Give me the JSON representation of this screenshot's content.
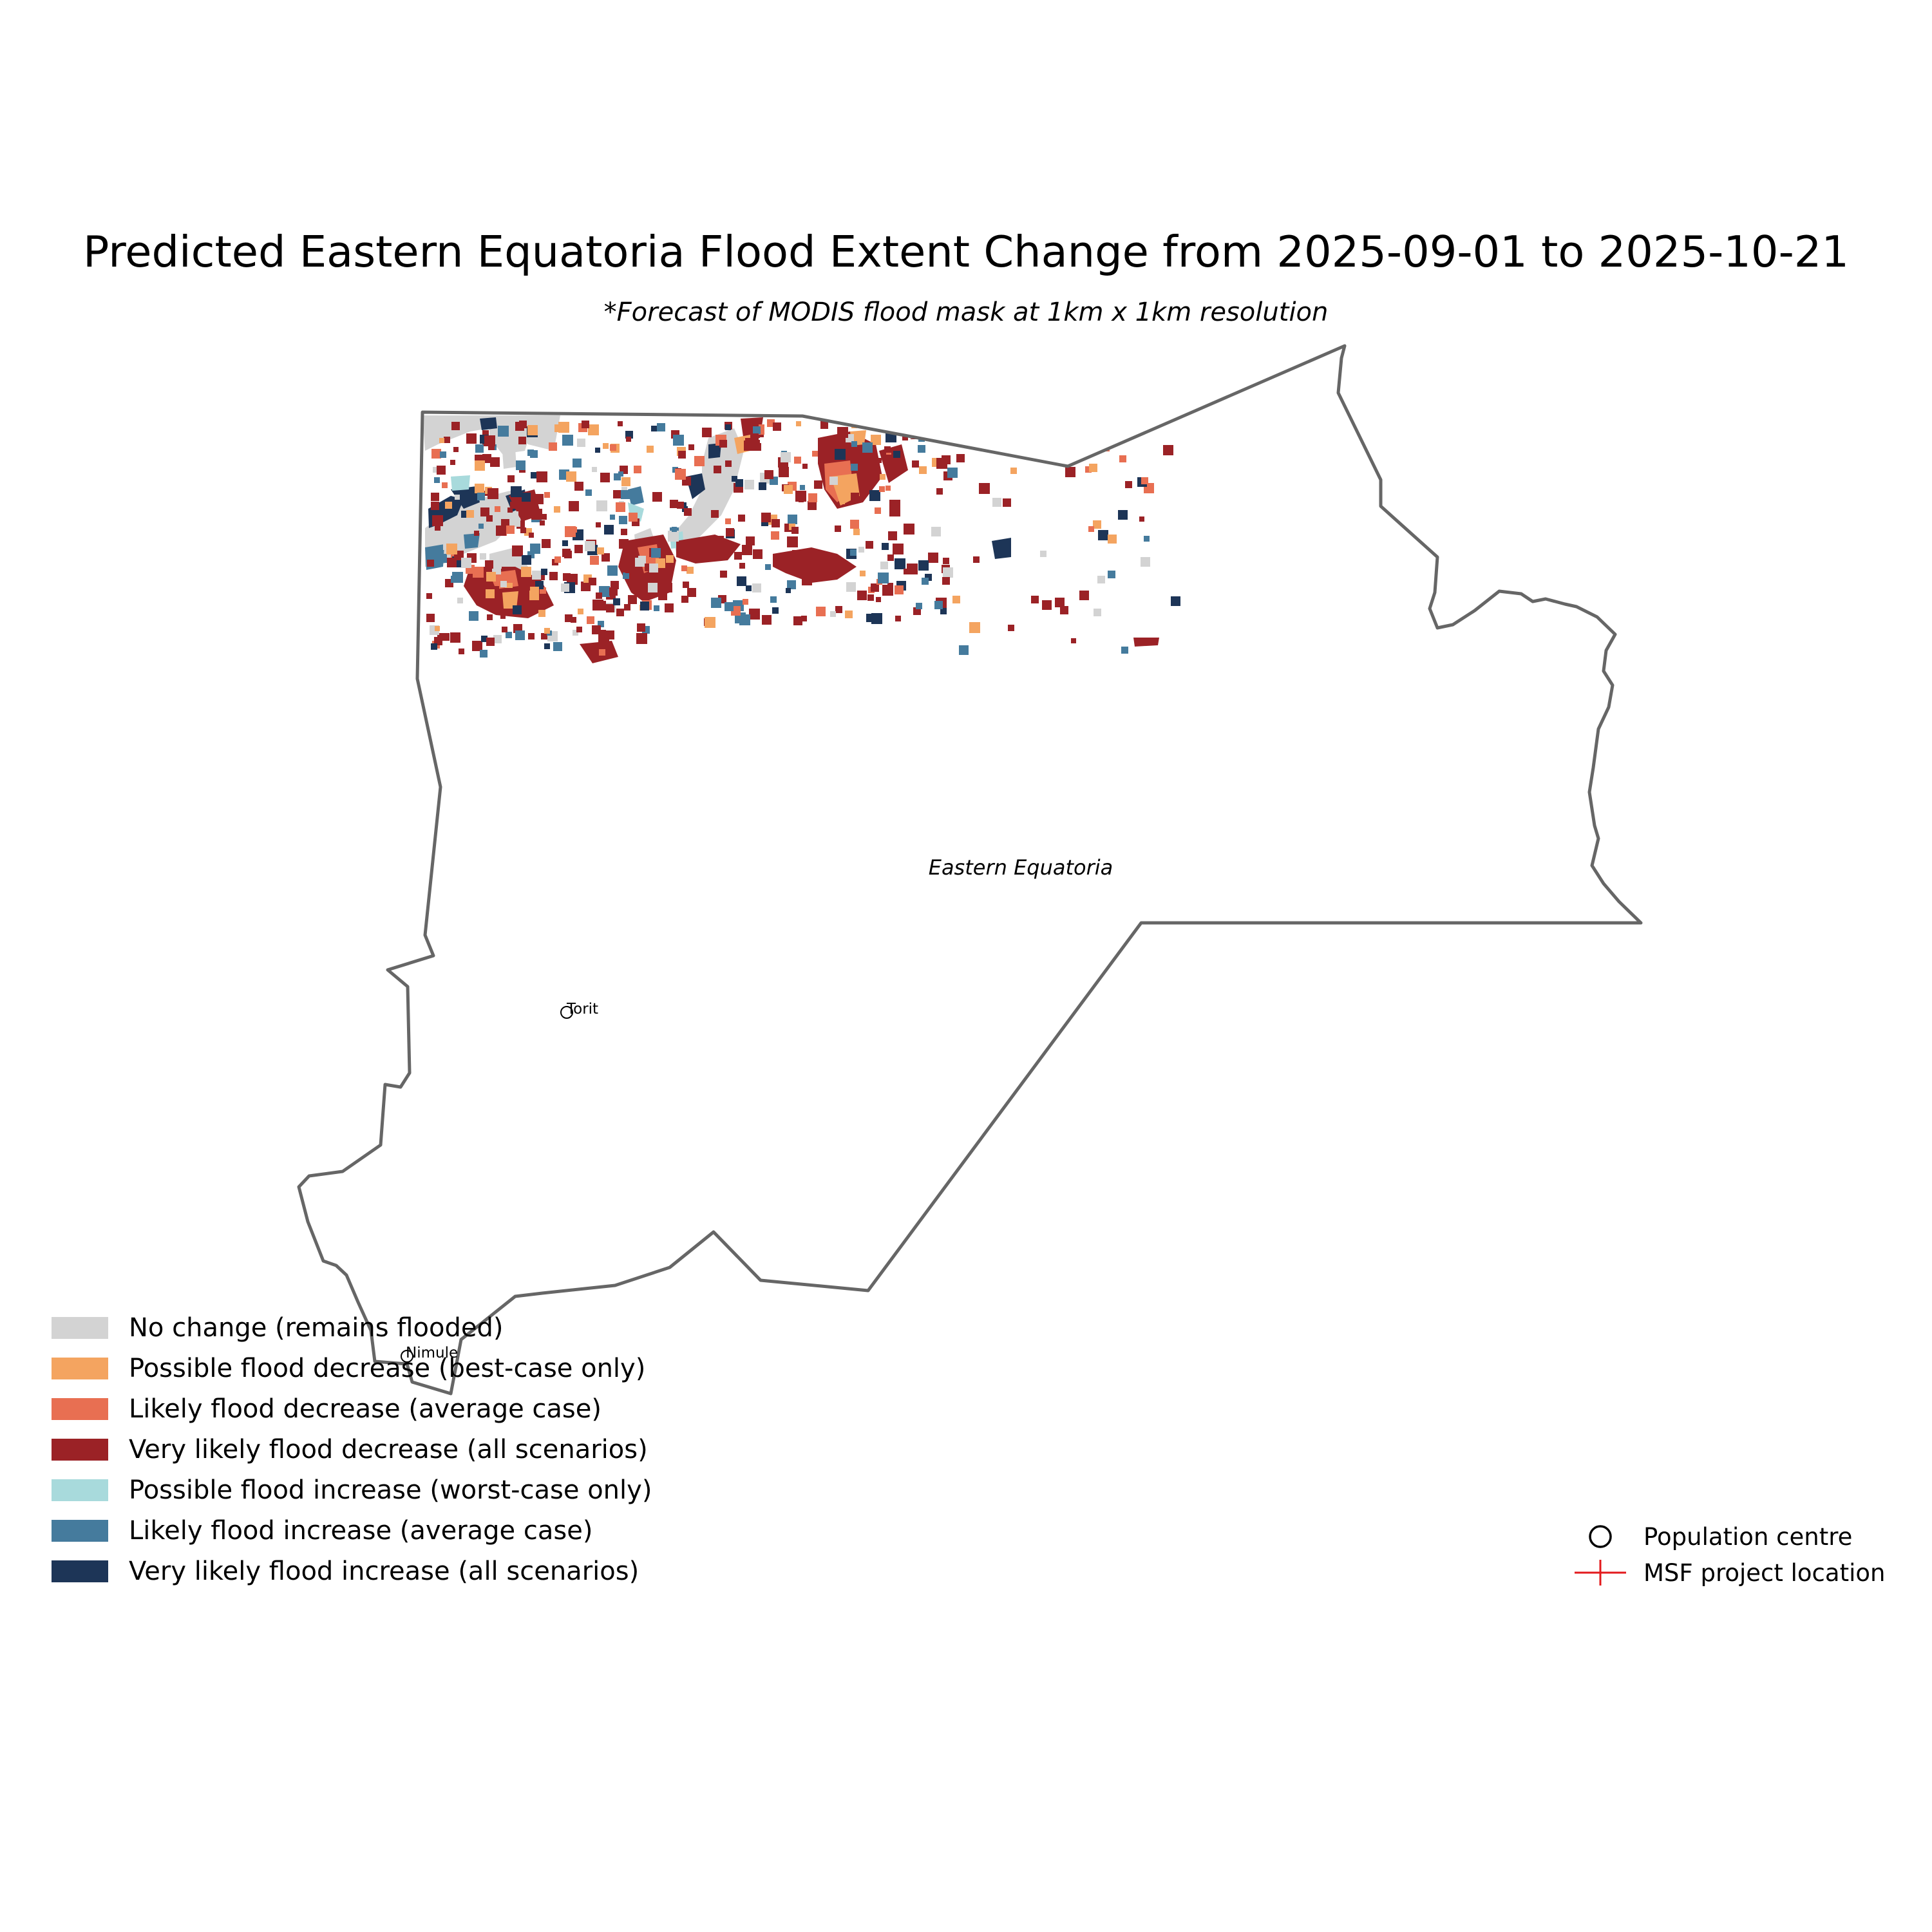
{
  "title": "Predicted Eastern Equatoria Flood Extent Change from 2025-09-01 to 2025-10-21",
  "subtitle": "*Forecast of MODIS flood mask at 1km x 1km resolution",
  "region_label": "Eastern Equatoria",
  "places": [
    {
      "name": "Torit",
      "type": "Population centre"
    },
    {
      "name": "Nimule",
      "type": "Population centre"
    }
  ],
  "colors": {
    "boundary": "#666666",
    "no_change": "#d3d3d3",
    "possible_decrease": "#f4a460",
    "likely_decrease": "#e86f52",
    "very_likely_decrease": "#9b2226",
    "possible_increase": "#a8dadc",
    "likely_increase": "#457b9d",
    "very_likely_increase": "#1d3557",
    "msf_marker": "#e31a1c"
  },
  "legend_flood": [
    {
      "label": "No change (remains flooded)",
      "color": "#d3d3d3"
    },
    {
      "label": "Possible flood decrease (best-case only)",
      "color": "#f4a460"
    },
    {
      "label": "Likely flood decrease (average case)",
      "color": "#e86f52"
    },
    {
      "label": "Very likely flood decrease (all scenarios)",
      "color": "#9b2226"
    },
    {
      "label": "Possible flood increase (worst-case only)",
      "color": "#a8dadc"
    },
    {
      "label": "Likely flood increase (average case)",
      "color": "#457b9d"
    },
    {
      "label": "Very likely flood increase (all scenarios)",
      "color": "#1d3557"
    }
  ],
  "legend_symbols": [
    {
      "label": "Population centre",
      "icon": "circle-outline-icon"
    },
    {
      "label": "MSF project location",
      "icon": "red-cross-marker-icon"
    }
  ]
}
